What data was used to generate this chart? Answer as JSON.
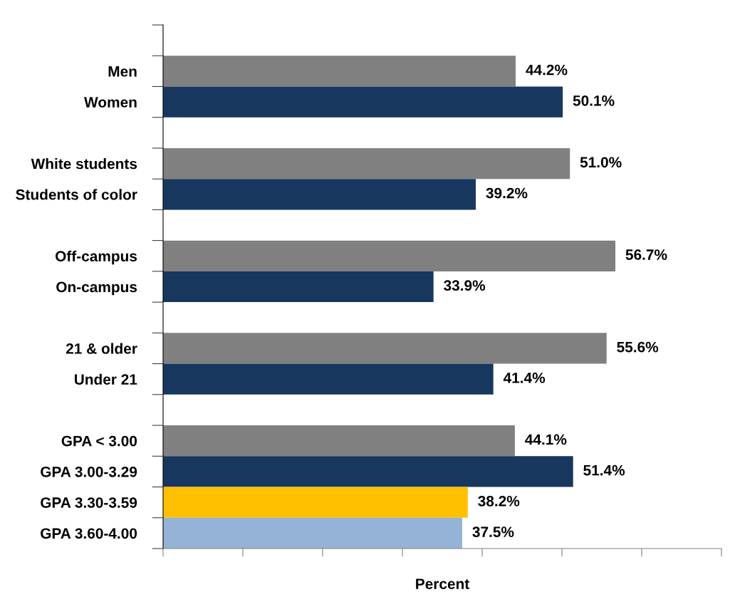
{
  "chart_data": {
    "type": "bar",
    "orientation": "horizontal",
    "categories": [
      null,
      "Men",
      "Women",
      null,
      "White students",
      "Students of color",
      null,
      "Off-campus",
      "On-campus",
      null,
      "21 & older",
      "Under 21",
      null,
      "GPA < 3.00",
      "GPA 3.00-3.29",
      "GPA 3.30-3.59",
      "GPA 3.60-4.00"
    ],
    "values": [
      null,
      44.2,
      50.1,
      null,
      51.0,
      39.2,
      null,
      56.7,
      33.9,
      null,
      55.6,
      41.4,
      null,
      44.1,
      51.4,
      38.2,
      37.5
    ],
    "colors": [
      null,
      "#808080",
      "#17375e",
      null,
      "#808080",
      "#17375e",
      null,
      "#808080",
      "#17375e",
      null,
      "#808080",
      "#17375e",
      null,
      "#808080",
      "#17375e",
      "#ffc000",
      "#95b3d7"
    ],
    "value_labels": [
      null,
      "44.2%",
      "50.1%",
      null,
      "51.0%",
      "39.2%",
      null,
      "56.7%",
      "33.9%",
      null,
      "55.6%",
      "41.4%",
      null,
      "44.1%",
      "51.4%",
      "38.2%",
      "37.5%"
    ],
    "xlabel": "Percent",
    "xlim": [
      0,
      70
    ],
    "xticks": [
      0,
      10,
      20,
      30,
      40,
      50,
      60,
      70
    ],
    "tick_labels": "y",
    "grid": false
  }
}
